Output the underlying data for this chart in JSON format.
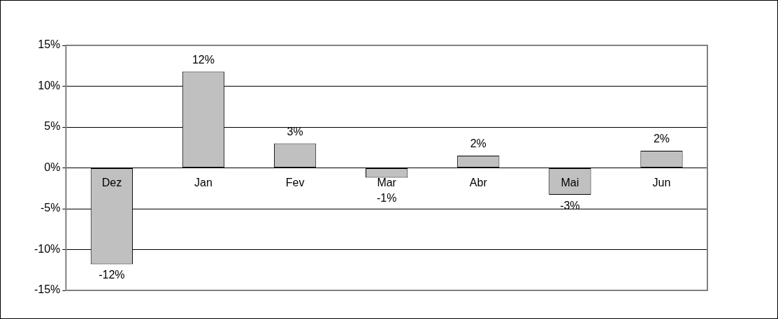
{
  "chart_data": {
    "type": "bar",
    "categories": [
      "Dez",
      "Jan",
      "Fev",
      "Mar",
      "Abr",
      "Mai",
      "Jun"
    ],
    "values": [
      -11.8,
      11.8,
      3,
      -1.2,
      1.5,
      -3.3,
      2.1
    ],
    "value_labels": [
      "-12%",
      "12%",
      "3%",
      "-1%",
      "2%",
      "-3%",
      "2%"
    ],
    "color": "#c0c0c0",
    "ylim": [
      -15,
      15
    ],
    "yticks": [
      {
        "value": -15,
        "label": "-15%"
      },
      {
        "value": -10,
        "label": "-10%"
      },
      {
        "value": -5,
        "label": "-5%"
      },
      {
        "value": 0,
        "label": "0%"
      },
      {
        "value": 5,
        "label": "5%"
      },
      {
        "value": 10,
        "label": "10%"
      },
      {
        "value": 15,
        "label": "15%"
      }
    ],
    "grid": "y",
    "legend": false
  }
}
